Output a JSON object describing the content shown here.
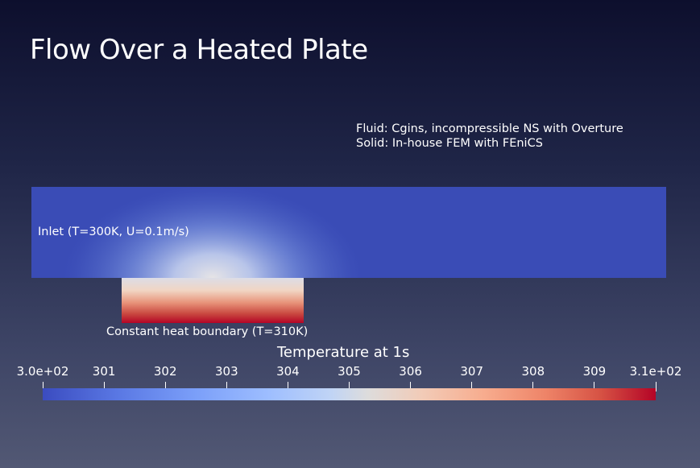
{
  "title": "Flow Over a Heated Plate",
  "info": {
    "fluid": "Fluid: Cgins, incompressible NS with Overture",
    "solid": "Solid: In-house FEM with FEniCS"
  },
  "labels": {
    "inlet": "Inlet (T=300K, U=0.1m/s)",
    "heat_boundary": "Constant heat boundary (T=310K)"
  },
  "colorbar": {
    "title": "Temperature at 1s",
    "ticks": [
      "3.0e+02",
      "301",
      "302",
      "303",
      "304",
      "305",
      "306",
      "307",
      "308",
      "309",
      "3.1e+02"
    ],
    "min": 300,
    "max": 310,
    "colormap": "cool-to-warm",
    "colors": {
      "cold": "#3b4cc0",
      "mid": "#dddcdc",
      "hot": "#b40426"
    }
  }
}
